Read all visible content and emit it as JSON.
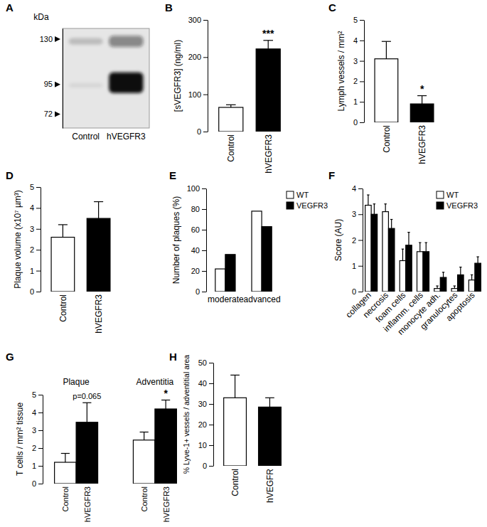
{
  "chart_data": [
    {
      "panel": "A",
      "type": "blot",
      "y_label": "kDa",
      "categories": [
        "Control",
        "hVEGFR3"
      ],
      "ylim": [
        61,
        138
      ],
      "yticks": [
        130,
        95,
        72
      ],
      "bands": [
        [
          {
            "kda": 128,
            "intensity": 0.18
          },
          {
            "kda": 94,
            "intensity": 0.07
          }
        ],
        [
          {
            "kda": 128,
            "intensity": 0.45
          },
          {
            "kda": 96,
            "intensity": 1.0
          }
        ]
      ]
    },
    {
      "panel": "B",
      "type": "bar",
      "y_label": "[sVEGFR3] (ng/ml)",
      "categories": [
        "Control",
        "hVEGFR3"
      ],
      "values": [
        65,
        222
      ],
      "errors": [
        7,
        23
      ],
      "colors": [
        "#ffffff",
        "#000000"
      ],
      "annotations": [
        null,
        "***"
      ],
      "ylim": [
        0,
        300
      ],
      "yticks": [
        0,
        100,
        200,
        300
      ]
    },
    {
      "panel": "C",
      "type": "bar",
      "y_label": "Lymph vessels / mm²",
      "categories": [
        "Control",
        "hVEGFR3"
      ],
      "values": [
        3.1,
        0.9
      ],
      "errors": [
        0.85,
        0.4
      ],
      "colors": [
        "#ffffff",
        "#000000"
      ],
      "annotations": [
        null,
        "*"
      ],
      "ylim": [
        0,
        5
      ],
      "yticks": [
        0,
        1,
        2,
        3,
        4,
        5
      ]
    },
    {
      "panel": "D",
      "type": "bar",
      "y_label": "Plaque volume (x10⁷ µm³)",
      "categories": [
        "Control",
        "hVEGFR3"
      ],
      "values": [
        2.6,
        3.5
      ],
      "errors": [
        0.6,
        0.8
      ],
      "colors": [
        "#ffffff",
        "#000000"
      ],
      "ylim": [
        0,
        5
      ],
      "yticks": [
        0,
        1,
        2,
        3,
        4,
        5
      ]
    },
    {
      "panel": "E",
      "type": "bar",
      "y_label": "Number of plaques (%)",
      "categories": [
        "moderate",
        "advanced"
      ],
      "series": [
        {
          "name": "WT",
          "color": "#ffffff",
          "values": [
            22,
            78
          ]
        },
        {
          "name": "VEGFR3",
          "color": "#000000",
          "values": [
            36,
            63
          ]
        }
      ],
      "legend": "right",
      "ylim": [
        0,
        100
      ],
      "yticks": [
        0,
        20,
        40,
        60,
        80,
        100
      ]
    },
    {
      "panel": "F",
      "type": "bar",
      "y_label": "Score (AU)",
      "categories": [
        "collagen",
        "necrosis",
        "foam cells",
        "inflamm. cells",
        "monocyte adh.",
        "granulocytes",
        "apoptosis"
      ],
      "series": [
        {
          "name": "WT",
          "color": "#ffffff",
          "values": [
            3.35,
            3.1,
            1.2,
            1.55,
            0.12,
            0.12,
            0.45
          ],
          "errors": [
            0.4,
            0.3,
            0.45,
            0.35,
            0.1,
            0.1,
            0.2
          ]
        },
        {
          "name": "VEGFR3",
          "color": "#000000",
          "values": [
            3.0,
            2.45,
            1.8,
            1.55,
            0.55,
            0.65,
            1.1
          ],
          "errors": [
            0.4,
            0.35,
            0.5,
            0.35,
            0.2,
            0.3,
            0.25
          ]
        }
      ],
      "legend": "top-right",
      "ylim": [
        0,
        4
      ],
      "yticks": [
        0,
        1,
        2,
        3,
        4
      ]
    },
    {
      "panel": "G",
      "type": "bar",
      "y_label": "T cells / mm² tissue",
      "groups": [
        "Plaque",
        "Adventitia"
      ],
      "categories": [
        "Control",
        "hVEGFR3",
        "Control",
        "hVEGFR3"
      ],
      "values": [
        1.2,
        3.45,
        2.45,
        4.2
      ],
      "errors": [
        0.5,
        1.1,
        0.45,
        0.5
      ],
      "colors": [
        "#ffffff",
        "#000000",
        "#ffffff",
        "#000000"
      ],
      "annotations": [
        null,
        "p=0.065",
        null,
        "*"
      ],
      "ylim": [
        0,
        5
      ],
      "yticks": [
        0,
        1,
        2,
        3,
        4,
        5
      ]
    },
    {
      "panel": "H",
      "type": "bar",
      "y_label": "% Lyve-1+ vessels / adventitial area",
      "categories": [
        "Control",
        "hVEGFR"
      ],
      "values": [
        33,
        28.5
      ],
      "errors": [
        11,
        4.5
      ],
      "colors": [
        "#ffffff",
        "#000000"
      ],
      "ylim": [
        0,
        50
      ],
      "yticks": [
        0,
        10,
        20,
        30,
        40,
        50
      ]
    }
  ]
}
